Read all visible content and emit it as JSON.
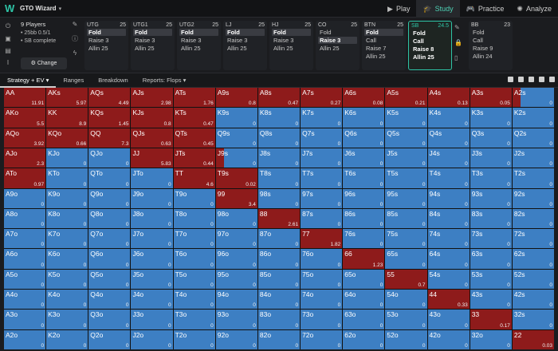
{
  "app": {
    "brand": "GTO Wizard"
  },
  "nav": [
    {
      "label": "Play",
      "icon": "play-icon",
      "active": false
    },
    {
      "label": "Study",
      "icon": "study-icon",
      "active": true
    },
    {
      "label": "Practice",
      "icon": "practice-icon",
      "active": false
    },
    {
      "label": "Analyze",
      "icon": "analyze-icon",
      "active": false
    }
  ],
  "game_info": {
    "players": "9 Players",
    "stakes": "25",
    "stakes_suffix": "bb 0.5/1",
    "status": "SB complete",
    "change_label": "Change"
  },
  "seats": [
    {
      "name": "UTG",
      "stack": "25",
      "actions": [
        "Fold",
        "Raise 3",
        "Allin 25"
      ],
      "selected": 0
    },
    {
      "name": "UTG1",
      "stack": "25",
      "actions": [
        "Fold",
        "Raise 3",
        "Allin 25"
      ],
      "selected": 0
    },
    {
      "name": "UTG2",
      "stack": "25",
      "actions": [
        "Fold",
        "Raise 3",
        "Allin 25"
      ],
      "selected": 0
    },
    {
      "name": "LJ",
      "stack": "25",
      "actions": [
        "Fold",
        "Raise 3",
        "Allin 25"
      ],
      "selected": 0
    },
    {
      "name": "HJ",
      "stack": "25",
      "actions": [
        "Fold",
        "Raise 3",
        "Allin 25"
      ],
      "selected": 0
    },
    {
      "name": "CO",
      "stack": "25",
      "actions": [
        "Fold",
        "Raise 3",
        "Allin 25"
      ],
      "selected": 1
    },
    {
      "name": "BTN",
      "stack": "25",
      "actions": [
        "Fold",
        "Call",
        "Raise 7",
        "Allin 25"
      ],
      "selected": 0
    },
    {
      "name": "SB",
      "stack": "24.5",
      "actions": [
        "Fold",
        "Call",
        "Raise 8",
        "Allin 25"
      ],
      "selected": -1,
      "active": true
    },
    {
      "name": "BB",
      "stack": "23",
      "actions": [
        "Fold",
        "Call",
        "Raise 9",
        "Allin 24"
      ],
      "selected": -1
    }
  ],
  "tabs": [
    {
      "label": "Strategy + EV",
      "active": true
    },
    {
      "label": "Ranges",
      "active": false
    },
    {
      "label": "Breakdown",
      "active": false
    },
    {
      "label": "Reports: Flops",
      "active": false
    }
  ],
  "colors": {
    "raise": "#8e1b1b",
    "fold": "#3d7fc3",
    "accent": "#2ec4a6"
  },
  "ranks": [
    "A",
    "K",
    "Q",
    "J",
    "T",
    "9",
    "8",
    "7",
    "6",
    "5",
    "4",
    "3",
    "2"
  ],
  "matrix": [
    [
      [
        "AA",
        "11.91",
        1
      ],
      [
        "AKs",
        "5.97",
        1
      ],
      [
        "AQs",
        "4.49",
        1
      ],
      [
        "AJs",
        "2.98",
        1
      ],
      [
        "ATs",
        "1.76",
        1
      ],
      [
        "A9s",
        "0.8",
        1
      ],
      [
        "A8s",
        "0.47",
        1
      ],
      [
        "A7s",
        "0.27",
        1
      ],
      [
        "A6s",
        "0.08",
        1
      ],
      [
        "A5s",
        "0.21",
        1
      ],
      [
        "A4s",
        "0.13",
        1
      ],
      [
        "A3s",
        "0.05",
        1
      ],
      [
        "A2s",
        "0",
        0.2
      ]
    ],
    [
      [
        "AKo",
        "5.5",
        1
      ],
      [
        "KK",
        "8.9",
        1
      ],
      [
        "KQs",
        "1.45",
        1
      ],
      [
        "KJs",
        "0.8",
        1
      ],
      [
        "KTs",
        "0.47",
        1
      ],
      [
        "K9s",
        "0",
        0
      ],
      [
        "K8s",
        "0",
        0
      ],
      [
        "K7s",
        "0",
        0
      ],
      [
        "K6s",
        "0",
        0
      ],
      [
        "K5s",
        "0",
        0
      ],
      [
        "K4s",
        "0",
        0
      ],
      [
        "K3s",
        "0",
        0
      ],
      [
        "K2s",
        "0",
        0
      ]
    ],
    [
      [
        "AQo",
        "3.92",
        1
      ],
      [
        "KQo",
        "0.66",
        1
      ],
      [
        "QQ",
        "7.3",
        1
      ],
      [
        "QJs",
        "0.63",
        1
      ],
      [
        "QTs",
        "0.45",
        1
      ],
      [
        "Q9s",
        "0",
        0
      ],
      [
        "Q8s",
        "0",
        0
      ],
      [
        "Q7s",
        "0",
        0
      ],
      [
        "Q6s",
        "0",
        0
      ],
      [
        "Q5s",
        "0",
        0
      ],
      [
        "Q4s",
        "0",
        0
      ],
      [
        "Q3s",
        "0",
        0
      ],
      [
        "Q2s",
        "0",
        0
      ]
    ],
    [
      [
        "AJo",
        "2.3",
        1
      ],
      [
        "KJo",
        "0",
        0
      ],
      [
        "QJo",
        "0",
        0
      ],
      [
        "JJ",
        "5.83",
        1
      ],
      [
        "JTs",
        "0.44",
        1
      ],
      [
        "J9s",
        "0",
        0.2
      ],
      [
        "J8s",
        "0",
        0
      ],
      [
        "J7s",
        "0",
        0
      ],
      [
        "J6s",
        "0",
        0
      ],
      [
        "J5s",
        "0",
        0
      ],
      [
        "J4s",
        "0",
        0
      ],
      [
        "J3s",
        "0",
        0
      ],
      [
        "J2s",
        "0",
        0
      ]
    ],
    [
      [
        "ATo",
        "0.97",
        1
      ],
      [
        "KTo",
        "0",
        0
      ],
      [
        "QTo",
        "0",
        0
      ],
      [
        "JTo",
        "0",
        0
      ],
      [
        "TT",
        "4.6",
        1
      ],
      [
        "T9s",
        "0.02",
        1
      ],
      [
        "T8s",
        "0",
        0
      ],
      [
        "T7s",
        "0",
        0
      ],
      [
        "T6s",
        "0",
        0
      ],
      [
        "T5s",
        "0",
        0
      ],
      [
        "T4s",
        "0",
        0
      ],
      [
        "T3s",
        "0",
        0
      ],
      [
        "T2s",
        "0",
        0
      ]
    ],
    [
      [
        "A9o",
        "0",
        0
      ],
      [
        "K9o",
        "0",
        0
      ],
      [
        "Q9o",
        "0",
        0
      ],
      [
        "J9o",
        "0",
        0
      ],
      [
        "T9o",
        "0",
        0
      ],
      [
        "99",
        "3.4",
        1
      ],
      [
        "98s",
        "0",
        0
      ],
      [
        "97s",
        "0",
        0
      ],
      [
        "96s",
        "0",
        0
      ],
      [
        "95s",
        "0",
        0
      ],
      [
        "94s",
        "0",
        0
      ],
      [
        "93s",
        "0",
        0
      ],
      [
        "92s",
        "0",
        0
      ]
    ],
    [
      [
        "A8o",
        "0",
        0
      ],
      [
        "K8o",
        "0",
        0
      ],
      [
        "Q8o",
        "0",
        0
      ],
      [
        "J8o",
        "0",
        0
      ],
      [
        "T8o",
        "0",
        0
      ],
      [
        "98o",
        "0",
        0
      ],
      [
        "88",
        "2.61",
        1
      ],
      [
        "87s",
        "0",
        0
      ],
      [
        "86s",
        "0",
        0
      ],
      [
        "85s",
        "0",
        0
      ],
      [
        "84s",
        "0",
        0
      ],
      [
        "83s",
        "0",
        0
      ],
      [
        "82s",
        "0",
        0
      ]
    ],
    [
      [
        "A7o",
        "0",
        0
      ],
      [
        "K7o",
        "0",
        0
      ],
      [
        "Q7o",
        "0",
        0
      ],
      [
        "J7o",
        "0",
        0
      ],
      [
        "T7o",
        "0",
        0
      ],
      [
        "97o",
        "0",
        0
      ],
      [
        "87o",
        "0",
        0
      ],
      [
        "77",
        "1.82",
        1
      ],
      [
        "76s",
        "0",
        0
      ],
      [
        "75s",
        "0",
        0
      ],
      [
        "74s",
        "0",
        0
      ],
      [
        "73s",
        "0",
        0
      ],
      [
        "72s",
        "0",
        0
      ]
    ],
    [
      [
        "A6o",
        "0",
        0
      ],
      [
        "K6o",
        "0",
        0
      ],
      [
        "Q6o",
        "0",
        0
      ],
      [
        "J6o",
        "0",
        0
      ],
      [
        "T6o",
        "0",
        0
      ],
      [
        "96o",
        "0",
        0
      ],
      [
        "86o",
        "0",
        0
      ],
      [
        "76o",
        "0",
        0
      ],
      [
        "66",
        "1.23",
        1
      ],
      [
        "65s",
        "0",
        0
      ],
      [
        "64s",
        "0",
        0
      ],
      [
        "63s",
        "0",
        0
      ],
      [
        "62s",
        "0",
        0
      ]
    ],
    [
      [
        "A5o",
        "0",
        0
      ],
      [
        "K5o",
        "0",
        0
      ],
      [
        "Q5o",
        "0",
        0
      ],
      [
        "J5o",
        "0",
        0
      ],
      [
        "T5o",
        "0",
        0
      ],
      [
        "95o",
        "0",
        0
      ],
      [
        "85o",
        "0",
        0
      ],
      [
        "75o",
        "0",
        0
      ],
      [
        "65o",
        "0",
        0
      ],
      [
        "55",
        "0.7",
        1
      ],
      [
        "54s",
        "0",
        0
      ],
      [
        "53s",
        "0",
        0
      ],
      [
        "52s",
        "0",
        0
      ]
    ],
    [
      [
        "A4o",
        "0",
        0
      ],
      [
        "K4o",
        "0",
        0
      ],
      [
        "Q4o",
        "0",
        0
      ],
      [
        "J4o",
        "0",
        0
      ],
      [
        "T4o",
        "0",
        0
      ],
      [
        "94o",
        "0",
        0
      ],
      [
        "84o",
        "0",
        0
      ],
      [
        "74o",
        "0",
        0
      ],
      [
        "64o",
        "0",
        0
      ],
      [
        "54o",
        "0",
        0
      ],
      [
        "44",
        "0.33",
        1
      ],
      [
        "43s",
        "0",
        0
      ],
      [
        "42s",
        "0",
        0
      ]
    ],
    [
      [
        "A3o",
        "0",
        0
      ],
      [
        "K3o",
        "0",
        0
      ],
      [
        "Q3o",
        "0",
        0
      ],
      [
        "J3o",
        "0",
        0
      ],
      [
        "T3o",
        "0",
        0
      ],
      [
        "93o",
        "0",
        0
      ],
      [
        "83o",
        "0",
        0
      ],
      [
        "73o",
        "0",
        0
      ],
      [
        "63o",
        "0",
        0
      ],
      [
        "53o",
        "0",
        0
      ],
      [
        "43o",
        "0",
        0
      ],
      [
        "33",
        "0.17",
        1
      ],
      [
        "32s",
        "0",
        0
      ]
    ],
    [
      [
        "A2o",
        "0",
        0
      ],
      [
        "K2o",
        "0",
        0
      ],
      [
        "Q2o",
        "0",
        0
      ],
      [
        "J2o",
        "0",
        0
      ],
      [
        "T2o",
        "0",
        0
      ],
      [
        "92o",
        "0",
        0
      ],
      [
        "82o",
        "0",
        0
      ],
      [
        "72o",
        "0",
        0
      ],
      [
        "62o",
        "0",
        0
      ],
      [
        "52o",
        "0",
        0
      ],
      [
        "42o",
        "0",
        0
      ],
      [
        "32o",
        "0",
        0
      ],
      [
        "22",
        "0.03",
        1
      ]
    ]
  ]
}
